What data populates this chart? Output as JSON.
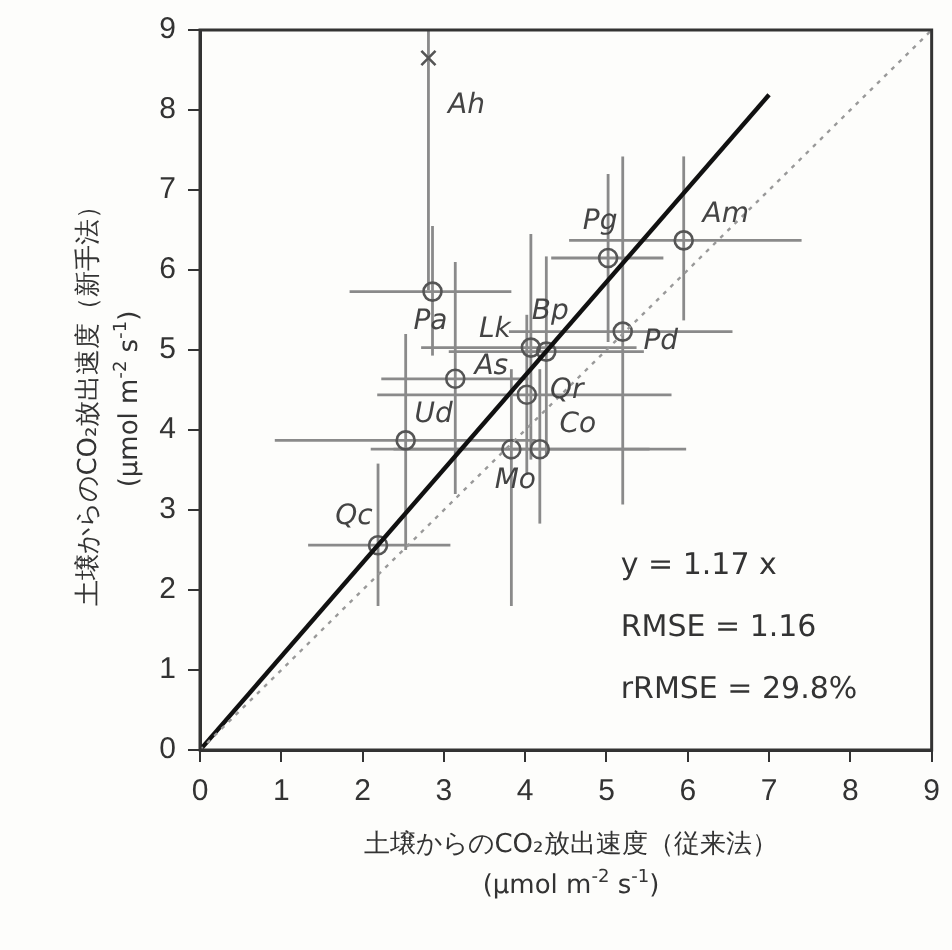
{
  "chart_data": {
    "type": "scatter",
    "xlabel": "土壌からのCO₂放出速度（従来法）\n(μmol m$^{-2}$ s$^{-1}$)",
    "ylabel": "土壌からのCO₂放出速度（新手法）\n(μmol m$^{-2}$ s$^{-1}$)",
    "xlim": [
      0,
      9
    ],
    "ylim": [
      0,
      9
    ],
    "xticks": [
      0,
      1,
      2,
      3,
      4,
      5,
      6,
      7,
      8,
      9
    ],
    "yticks": [
      0,
      1,
      2,
      3,
      4,
      5,
      6,
      7,
      8,
      9
    ],
    "grid": false,
    "legend": false,
    "series": [
      {
        "type": "line",
        "color": "#999999",
        "line_style": "dotted",
        "marker": "none",
        "x": [
          0,
          9
        ],
        "values": [
          0,
          9
        ]
      },
      {
        "type": "line",
        "color": "#111111",
        "line_style": "solid",
        "marker": "none",
        "x": [
          0,
          7
        ],
        "values": [
          0,
          8.19
        ]
      },
      {
        "type": "scatter",
        "color": "#555555",
        "marker": "circle",
        "x": [
          2.86,
          5.02,
          5.95,
          5.2,
          4.07,
          4.26,
          3.14,
          4.02,
          2.53,
          3.83,
          4.18,
          2.19
        ],
        "values": [
          5.73,
          6.15,
          6.37,
          5.23,
          5.03,
          4.98,
          4.64,
          4.44,
          3.87,
          3.76,
          3.76,
          2.56
        ],
        "xerrors": [
          [
            1.84,
            3.83
          ],
          [
            4.32,
            5.7
          ],
          [
            4.54,
            7.4
          ],
          [
            3.8,
            6.55
          ],
          [
            2.72,
            5.37
          ],
          [
            3.06,
            5.46
          ],
          [
            2.23,
            4.04
          ],
          [
            2.18,
            5.8
          ],
          [
            0.92,
            4.13
          ],
          [
            2.1,
            5.53
          ],
          [
            2.38,
            5.98
          ],
          [
            1.33,
            3.08
          ]
        ],
        "errors": [
          [
            4.93,
            6.55
          ],
          [
            5.1,
            7.2
          ],
          [
            5.37,
            7.42
          ],
          [
            3.07,
            7.42
          ],
          [
            3.63,
            6.45
          ],
          [
            3.68,
            6.17
          ],
          [
            3.2,
            6.1
          ],
          [
            3.44,
            5.44
          ],
          [
            2.5,
            5.2
          ],
          [
            1.8,
            4.76
          ],
          [
            2.83,
            4.76
          ],
          [
            1.8,
            3.58
          ]
        ]
      },
      {
        "type": "scatter",
        "color": "#555555",
        "marker": "cross",
        "x": [
          2.81
        ],
        "values": [
          8.65
        ],
        "errors": [
          [
            5.75,
            9
          ]
        ]
      }
    ],
    "annotations": [
      {
        "text": "Ah",
        "x": 2.81,
        "y": 8.65
      },
      {
        "text": "Pa",
        "x": 2.86,
        "y": 5.73
      },
      {
        "text": "Pg",
        "x": 5.02,
        "y": 6.15
      },
      {
        "text": "Am",
        "x": 5.95,
        "y": 6.37
      },
      {
        "text": "Pd",
        "x": 5.2,
        "y": 5.23
      },
      {
        "text": "Lk",
        "x": 4.07,
        "y": 5.03
      },
      {
        "text": "Bp",
        "x": 4.26,
        "y": 4.98
      },
      {
        "text": "As",
        "x": 3.14,
        "y": 4.64
      },
      {
        "text": "Qr",
        "x": 4.02,
        "y": 4.44
      },
      {
        "text": "Ud",
        "x": 2.53,
        "y": 3.87
      },
      {
        "text": "Co",
        "x": 4.18,
        "y": 3.76
      },
      {
        "text": "Mo",
        "x": 3.83,
        "y": 3.76
      },
      {
        "text": "Qc",
        "x": 2.19,
        "y": 2.56
      },
      "y = 1.17 x",
      "RMSE = 1.16",
      "rRMSE = 29.8%"
    ]
  }
}
